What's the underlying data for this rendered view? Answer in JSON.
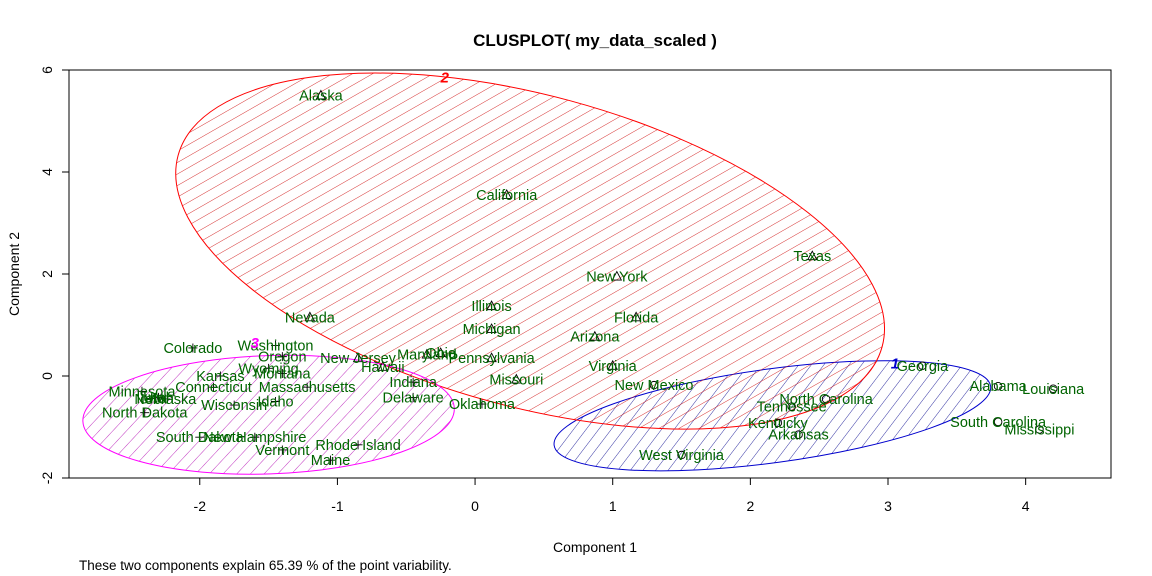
{
  "chart_data": {
    "type": "scatter",
    "title": "CLUSPLOT( my_data_scaled )",
    "xlabel": "Component 1",
    "ylabel": "Component 2",
    "caption": "These two components explain 65.39 % of the point variability.",
    "xlim": [
      -2.95,
      4.62
    ],
    "ylim": [
      -2.0,
      6.0
    ],
    "x_ticks": [
      -2,
      -1,
      0,
      1,
      2,
      3,
      4
    ],
    "y_ticks": [
      -2,
      0,
      2,
      4,
      6
    ],
    "grid": false,
    "clusters": [
      {
        "id": "1",
        "color": "#0000CD",
        "fill": "#00008B",
        "marker": "circle",
        "ellipse": {
          "cx": 2.16,
          "cy": -0.78,
          "rx": 1.6,
          "ry": 0.92,
          "angle": 7.7
        },
        "label_pos": [
          3.05,
          0.25
        ]
      },
      {
        "id": "2",
        "color": "#FF0000",
        "fill": "#CC0000",
        "marker": "triangle",
        "ellipse": {
          "cx": 0.4,
          "cy": 2.45,
          "rx": 2.65,
          "ry": 3.05,
          "angle": -15.2
        },
        "label_pos": [
          -0.22,
          5.85
        ]
      },
      {
        "id": "3",
        "color": "#FF00FF",
        "fill": "#B000B0",
        "marker": "plus",
        "ellipse": {
          "cx": -1.5,
          "cy": -0.76,
          "rx": 1.35,
          "ry": 1.16,
          "angle": 2
        },
        "label_pos": [
          -1.6,
          0.65
        ]
      }
    ],
    "points": [
      {
        "name": "Alabama",
        "x": 3.8,
        "y": -0.2,
        "cluster": "1"
      },
      {
        "name": "Alaska",
        "x": -1.12,
        "y": 5.5,
        "cluster": "2"
      },
      {
        "name": "Arizona",
        "x": 0.87,
        "y": 0.77,
        "cluster": "2"
      },
      {
        "name": "Arkansas",
        "x": 2.35,
        "y": -1.15,
        "cluster": "1"
      },
      {
        "name": "California",
        "x": 0.23,
        "y": 3.55,
        "cluster": "2"
      },
      {
        "name": "Colorado",
        "x": -2.05,
        "y": 0.55,
        "cluster": "3"
      },
      {
        "name": "Connecticut",
        "x": -1.9,
        "y": -0.22,
        "cluster": "3"
      },
      {
        "name": "Delaware",
        "x": -0.45,
        "y": -0.42,
        "cluster": "3"
      },
      {
        "name": "Florida",
        "x": 1.17,
        "y": 1.15,
        "cluster": "2"
      },
      {
        "name": "Georgia",
        "x": 3.25,
        "y": 0.2,
        "cluster": "1"
      },
      {
        "name": "Hawaii",
        "x": -0.67,
        "y": 0.18,
        "cluster": "2"
      },
      {
        "name": "Idaho",
        "x": -1.45,
        "y": -0.5,
        "cluster": "3"
      },
      {
        "name": "Illinois",
        "x": 0.12,
        "y": 1.37,
        "cluster": "2"
      },
      {
        "name": "Indiana",
        "x": -0.45,
        "y": -0.12,
        "cluster": "3"
      },
      {
        "name": "Iowa",
        "x": -2.35,
        "y": -0.44,
        "cluster": "3"
      },
      {
        "name": "Kansas",
        "x": -1.85,
        "y": 0.0,
        "cluster": "3"
      },
      {
        "name": "Kentucky",
        "x": 2.2,
        "y": -0.92,
        "cluster": "1"
      },
      {
        "name": "Louisiana",
        "x": 4.2,
        "y": -0.25,
        "cluster": "1"
      },
      {
        "name": "Maine",
        "x": -1.05,
        "y": -1.65,
        "cluster": "3"
      },
      {
        "name": "Maryland",
        "x": -0.35,
        "y": 0.42,
        "cluster": "2"
      },
      {
        "name": "Massachusetts",
        "x": -1.22,
        "y": -0.22,
        "cluster": "3"
      },
      {
        "name": "Michigan",
        "x": 0.12,
        "y": 0.92,
        "cluster": "2"
      },
      {
        "name": "Minnesota",
        "x": -2.42,
        "y": -0.3,
        "cluster": "3"
      },
      {
        "name": "Mississippi",
        "x": 4.1,
        "y": -1.05,
        "cluster": "1"
      },
      {
        "name": "Missouri",
        "x": 0.3,
        "y": -0.07,
        "cluster": "2"
      },
      {
        "name": "Montana",
        "x": -1.4,
        "y": 0.05,
        "cluster": "3"
      },
      {
        "name": "Nebraska",
        "x": -2.25,
        "y": -0.45,
        "cluster": "3"
      },
      {
        "name": "Nevada",
        "x": -1.2,
        "y": 1.15,
        "cluster": "2"
      },
      {
        "name": "New Hampshire",
        "x": -1.6,
        "y": -1.2,
        "cluster": "3"
      },
      {
        "name": "New Jersey",
        "x": -0.85,
        "y": 0.35,
        "cluster": "2"
      },
      {
        "name": "New Mexico",
        "x": 1.3,
        "y": -0.18,
        "cluster": "1"
      },
      {
        "name": "New York",
        "x": 1.03,
        "y": 1.95,
        "cluster": "2"
      },
      {
        "name": "North Carolina",
        "x": 2.55,
        "y": -0.45,
        "cluster": "1"
      },
      {
        "name": "North Dakota",
        "x": -2.4,
        "y": -0.72,
        "cluster": "3"
      },
      {
        "name": "Ohio",
        "x": -0.25,
        "y": 0.45,
        "cluster": "2"
      },
      {
        "name": "Oklahoma",
        "x": 0.05,
        "y": -0.55,
        "cluster": "3"
      },
      {
        "name": "Oregon",
        "x": -1.4,
        "y": 0.38,
        "cluster": "3"
      },
      {
        "name": "Pennsylvania",
        "x": 0.12,
        "y": 0.35,
        "cluster": "2"
      },
      {
        "name": "Rhode Island",
        "x": -0.85,
        "y": -1.35,
        "cluster": "3"
      },
      {
        "name": "South Carolina",
        "x": 3.8,
        "y": -0.9,
        "cluster": "1"
      },
      {
        "name": "South Dakota",
        "x": -2.0,
        "y": -1.2,
        "cluster": "3"
      },
      {
        "name": "Tennessee",
        "x": 2.3,
        "y": -0.6,
        "cluster": "1"
      },
      {
        "name": "Texas",
        "x": 2.45,
        "y": 2.35,
        "cluster": "2"
      },
      {
        "name": "Utah",
        "x": -2.3,
        "y": -0.42,
        "cluster": "3"
      },
      {
        "name": "Vermont",
        "x": -1.4,
        "y": -1.45,
        "cluster": "3"
      },
      {
        "name": "Virginia",
        "x": 1.0,
        "y": 0.2,
        "cluster": "2"
      },
      {
        "name": "Washington",
        "x": -1.45,
        "y": 0.6,
        "cluster": "3"
      },
      {
        "name": "West Virginia",
        "x": 1.5,
        "y": -1.55,
        "cluster": "1"
      },
      {
        "name": "Wisconsin",
        "x": -1.75,
        "y": -0.57,
        "cluster": "3"
      },
      {
        "name": "Wyoming",
        "x": -1.5,
        "y": 0.15,
        "cluster": "3"
      }
    ]
  }
}
